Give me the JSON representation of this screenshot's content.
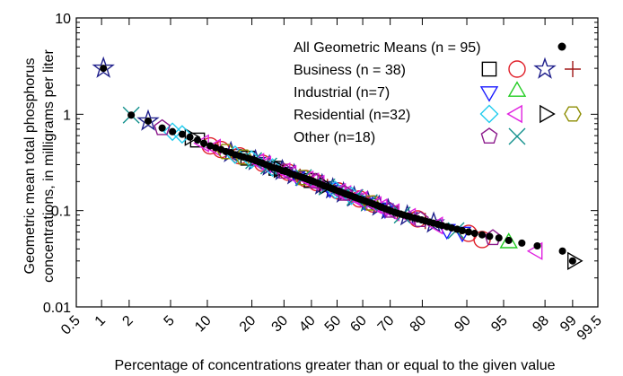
{
  "chart_data": {
    "type": "scatter",
    "title": "",
    "xlabel": "Percentage of concentrations greater than or equal to the given value",
    "ylabel": [
      "Geometric mean total phosphorus",
      "concentrations, in milligrams per liter"
    ],
    "x_scale": "probability",
    "y_scale": "log",
    "xlim": [
      0.5,
      99.5
    ],
    "ylim": [
      0.01,
      10
    ],
    "x_ticks": [
      0.5,
      1,
      2,
      5,
      10,
      20,
      30,
      40,
      50,
      60,
      70,
      80,
      90,
      95,
      98,
      99,
      99.5
    ],
    "x_tick_labels": [
      "0.5",
      "1",
      "2",
      "5",
      "10",
      "20",
      "30",
      "40",
      "50",
      "60",
      "70",
      "80",
      "90",
      "95",
      "98",
      "99",
      "99.5"
    ],
    "y_ticks": [
      0.01,
      0.1,
      1,
      10
    ],
    "y_tick_labels": [
      "0.01",
      "0.1",
      "1",
      "10"
    ],
    "grid": false,
    "legend_position": "top-right",
    "legend": [
      {
        "label": "All Geometric Means (n = 95)",
        "markers": [
          "dot"
        ]
      },
      {
        "label": "Business (n = 38)",
        "markers": [
          "square",
          "circle",
          "star",
          "plus"
        ]
      },
      {
        "label": "Industrial (n=7)",
        "markers": [
          "triangle-down",
          "triangle-up"
        ]
      },
      {
        "label": "Residential (n=32)",
        "markers": [
          "diamond",
          "triangle-left",
          "triangle-right",
          "hexagon"
        ]
      },
      {
        "label": "Other (n=18)",
        "markers": [
          "pentagon",
          "cross"
        ]
      }
    ],
    "marker_colors": {
      "dot": "#000000",
      "square": "#000000",
      "circle": "#e0202a",
      "star": "#20208c",
      "plus": "#a01818",
      "triangle-down": "#1a1aff",
      "triangle-up": "#22cc22",
      "diamond": "#22ccee",
      "triangle-left": "#e020e0",
      "triangle-right": "#000000",
      "hexagon": "#8c8c00",
      "pentagon": "#8c1a8c",
      "cross": "#11908c"
    },
    "series": [
      {
        "name": "All Geometric Means (n = 95)",
        "marker": "dot",
        "x": [
          1.05,
          2.1,
          3.1,
          4.2,
          5.2,
          6.3,
          7.3,
          8.4,
          9.4,
          10.5,
          11.5,
          12.6,
          13.6,
          14.7,
          15.7,
          16.8,
          17.8,
          18.9,
          19.9,
          21.0,
          22.0,
          23.1,
          24.1,
          25.2,
          26.2,
          27.3,
          28.3,
          29.4,
          30.4,
          31.5,
          32.5,
          33.6,
          34.6,
          35.7,
          36.7,
          37.8,
          38.8,
          39.9,
          40.9,
          42.0,
          43.0,
          44.1,
          45.1,
          46.2,
          47.2,
          48.3,
          49.3,
          50.4,
          51.4,
          52.5,
          53.5,
          54.6,
          55.6,
          56.7,
          57.7,
          58.8,
          59.8,
          60.9,
          61.9,
          63.0,
          64.0,
          65.1,
          66.1,
          67.2,
          68.2,
          69.3,
          70.3,
          71.4,
          72.4,
          73.5,
          74.5,
          75.6,
          76.6,
          77.7,
          78.7,
          79.8,
          80.8,
          81.9,
          82.9,
          84.0,
          85.0,
          86.1,
          87.1,
          88.2,
          89.2,
          90.3,
          91.3,
          92.4,
          93.4,
          94.5,
          95.5,
          96.6,
          97.6,
          98.7,
          99.0
        ],
        "y": [
          3.0,
          0.98,
          0.85,
          0.72,
          0.66,
          0.62,
          0.58,
          0.54,
          0.5,
          0.47,
          0.45,
          0.43,
          0.41,
          0.4,
          0.38,
          0.37,
          0.36,
          0.35,
          0.34,
          0.33,
          0.32,
          0.31,
          0.3,
          0.29,
          0.28,
          0.275,
          0.27,
          0.26,
          0.255,
          0.25,
          0.24,
          0.235,
          0.23,
          0.225,
          0.22,
          0.215,
          0.21,
          0.205,
          0.2,
          0.195,
          0.19,
          0.185,
          0.18,
          0.176,
          0.172,
          0.168,
          0.164,
          0.16,
          0.156,
          0.152,
          0.148,
          0.145,
          0.142,
          0.138,
          0.135,
          0.132,
          0.129,
          0.126,
          0.123,
          0.12,
          0.117,
          0.114,
          0.111,
          0.108,
          0.105,
          0.102,
          0.099,
          0.096,
          0.094,
          0.092,
          0.09,
          0.088,
          0.086,
          0.084,
          0.082,
          0.08,
          0.078,
          0.076,
          0.074,
          0.072,
          0.07,
          0.068,
          0.066,
          0.064,
          0.062,
          0.06,
          0.058,
          0.056,
          0.054,
          0.052,
          0.049,
          0.046,
          0.043,
          0.038,
          0.03
        ]
      },
      {
        "name": "Business (n = 38)",
        "points": [
          {
            "x": 1.05,
            "y": 3.0,
            "m": "star"
          },
          {
            "x": 3.1,
            "y": 0.85,
            "m": "star"
          },
          {
            "x": 8.4,
            "y": 0.54,
            "m": "square"
          },
          {
            "x": 10.5,
            "y": 0.47,
            "m": "circle"
          },
          {
            "x": 12.6,
            "y": 0.43,
            "m": "circle"
          },
          {
            "x": 14.7,
            "y": 0.4,
            "m": "star"
          },
          {
            "x": 16.8,
            "y": 0.37,
            "m": "circle"
          },
          {
            "x": 18.9,
            "y": 0.35,
            "m": "square"
          },
          {
            "x": 21.0,
            "y": 0.33,
            "m": "star"
          },
          {
            "x": 23.1,
            "y": 0.31,
            "m": "circle"
          },
          {
            "x": 25.2,
            "y": 0.29,
            "m": "star"
          },
          {
            "x": 27.3,
            "y": 0.275,
            "m": "square"
          },
          {
            "x": 29.4,
            "y": 0.26,
            "m": "star"
          },
          {
            "x": 31.5,
            "y": 0.25,
            "m": "circle"
          },
          {
            "x": 33.6,
            "y": 0.235,
            "m": "star"
          },
          {
            "x": 35.7,
            "y": 0.225,
            "m": "plus"
          },
          {
            "x": 37.8,
            "y": 0.215,
            "m": "circle"
          },
          {
            "x": 39.9,
            "y": 0.205,
            "m": "square"
          },
          {
            "x": 42.0,
            "y": 0.195,
            "m": "circle"
          },
          {
            "x": 44.1,
            "y": 0.185,
            "m": "star"
          },
          {
            "x": 46.2,
            "y": 0.176,
            "m": "plus"
          },
          {
            "x": 48.3,
            "y": 0.168,
            "m": "star"
          },
          {
            "x": 50.4,
            "y": 0.16,
            "m": "circle"
          },
          {
            "x": 52.5,
            "y": 0.152,
            "m": "star"
          },
          {
            "x": 54.6,
            "y": 0.145,
            "m": "plus"
          },
          {
            "x": 56.7,
            "y": 0.138,
            "m": "star"
          },
          {
            "x": 58.8,
            "y": 0.132,
            "m": "circle"
          },
          {
            "x": 61.9,
            "y": 0.123,
            "m": "star"
          },
          {
            "x": 64.0,
            "y": 0.117,
            "m": "circle"
          },
          {
            "x": 66.1,
            "y": 0.111,
            "m": "star"
          },
          {
            "x": 69.3,
            "y": 0.102,
            "m": "star"
          },
          {
            "x": 72.4,
            "y": 0.094,
            "m": "plus"
          },
          {
            "x": 75.6,
            "y": 0.088,
            "m": "star"
          },
          {
            "x": 78.7,
            "y": 0.082,
            "m": "circle"
          },
          {
            "x": 80.8,
            "y": 0.078,
            "m": "plus"
          },
          {
            "x": 83.0,
            "y": 0.074,
            "m": "star"
          },
          {
            "x": 90.3,
            "y": 0.058,
            "m": "circle"
          },
          {
            "x": 92.4,
            "y": 0.05,
            "m": "circle"
          }
        ]
      },
      {
        "name": "Industrial (n=7)",
        "points": [
          {
            "x": 34.6,
            "y": 0.23,
            "m": "triangle-down"
          },
          {
            "x": 47.2,
            "y": 0.172,
            "m": "triangle-down"
          },
          {
            "x": 60.9,
            "y": 0.126,
            "m": "triangle-down"
          },
          {
            "x": 68.2,
            "y": 0.105,
            "m": "triangle-down"
          },
          {
            "x": 86.1,
            "y": 0.064,
            "m": "triangle-down"
          },
          {
            "x": 89.2,
            "y": 0.06,
            "m": "triangle-down"
          },
          {
            "x": 95.5,
            "y": 0.046,
            "m": "triangle-up"
          }
        ]
      },
      {
        "name": "Residential (n=32)",
        "points": [
          {
            "x": 5.2,
            "y": 0.66,
            "m": "diamond"
          },
          {
            "x": 7.3,
            "y": 0.58,
            "m": "triangle-right"
          },
          {
            "x": 11.5,
            "y": 0.45,
            "m": "triangle-left"
          },
          {
            "x": 13.6,
            "y": 0.41,
            "m": "hexagon"
          },
          {
            "x": 15.7,
            "y": 0.38,
            "m": "diamond"
          },
          {
            "x": 17.8,
            "y": 0.36,
            "m": "hexagon"
          },
          {
            "x": 19.9,
            "y": 0.34,
            "m": "diamond"
          },
          {
            "x": 22.0,
            "y": 0.32,
            "m": "triangle-left"
          },
          {
            "x": 24.1,
            "y": 0.3,
            "m": "triangle-left"
          },
          {
            "x": 26.2,
            "y": 0.28,
            "m": "diamond"
          },
          {
            "x": 28.3,
            "y": 0.27,
            "m": "triangle-right"
          },
          {
            "x": 30.4,
            "y": 0.255,
            "m": "triangle-left"
          },
          {
            "x": 32.5,
            "y": 0.24,
            "m": "triangle-left"
          },
          {
            "x": 36.7,
            "y": 0.22,
            "m": "hexagon"
          },
          {
            "x": 38.8,
            "y": 0.21,
            "m": "triangle-left"
          },
          {
            "x": 40.9,
            "y": 0.2,
            "m": "triangle-left"
          },
          {
            "x": 43.0,
            "y": 0.19,
            "m": "triangle-left"
          },
          {
            "x": 45.1,
            "y": 0.18,
            "m": "triangle-right"
          },
          {
            "x": 49.3,
            "y": 0.164,
            "m": "diamond"
          },
          {
            "x": 51.4,
            "y": 0.156,
            "m": "triangle-left"
          },
          {
            "x": 53.5,
            "y": 0.148,
            "m": "triangle-left"
          },
          {
            "x": 55.6,
            "y": 0.142,
            "m": "diamond"
          },
          {
            "x": 57.7,
            "y": 0.135,
            "m": "triangle-left"
          },
          {
            "x": 59.8,
            "y": 0.129,
            "m": "triangle-left"
          },
          {
            "x": 63.0,
            "y": 0.12,
            "m": "hexagon"
          },
          {
            "x": 65.1,
            "y": 0.114,
            "m": "triangle-left"
          },
          {
            "x": 67.2,
            "y": 0.108,
            "m": "triangle-left"
          },
          {
            "x": 71.4,
            "y": 0.096,
            "m": "triangle-left"
          },
          {
            "x": 76.6,
            "y": 0.086,
            "m": "triangle-left"
          },
          {
            "x": 84.0,
            "y": 0.07,
            "m": "triangle-left"
          },
          {
            "x": 97.6,
            "y": 0.038,
            "m": "triangle-left"
          },
          {
            "x": 99.0,
            "y": 0.03,
            "m": "triangle-right"
          }
        ]
      },
      {
        "name": "Other (n=18)",
        "points": [
          {
            "x": 2.1,
            "y": 0.98,
            "m": "cross"
          },
          {
            "x": 4.2,
            "y": 0.72,
            "m": "pentagon"
          },
          {
            "x": 6.3,
            "y": 0.62,
            "m": "diamond"
          },
          {
            "x": 9.4,
            "y": 0.5,
            "m": "triangle-left"
          },
          {
            "x": 20.5,
            "y": 0.33,
            "m": "cross"
          },
          {
            "x": 25.0,
            "y": 0.29,
            "m": "cross"
          },
          {
            "x": 30.0,
            "y": 0.255,
            "m": "pentagon"
          },
          {
            "x": 37.0,
            "y": 0.22,
            "m": "cross"
          },
          {
            "x": 41.5,
            "y": 0.2,
            "m": "pentagon"
          },
          {
            "x": 46.0,
            "y": 0.176,
            "m": "cross"
          },
          {
            "x": 53.0,
            "y": 0.15,
            "m": "pentagon"
          },
          {
            "x": 57.0,
            "y": 0.137,
            "m": "cross"
          },
          {
            "x": 62.5,
            "y": 0.121,
            "m": "cross"
          },
          {
            "x": 70.0,
            "y": 0.1,
            "m": "pentagon"
          },
          {
            "x": 74.0,
            "y": 0.09,
            "m": "cross"
          },
          {
            "x": 79.5,
            "y": 0.08,
            "m": "pentagon"
          },
          {
            "x": 88.0,
            "y": 0.062,
            "m": "cross"
          },
          {
            "x": 93.8,
            "y": 0.052,
            "m": "pentagon"
          }
        ]
      }
    ]
  }
}
